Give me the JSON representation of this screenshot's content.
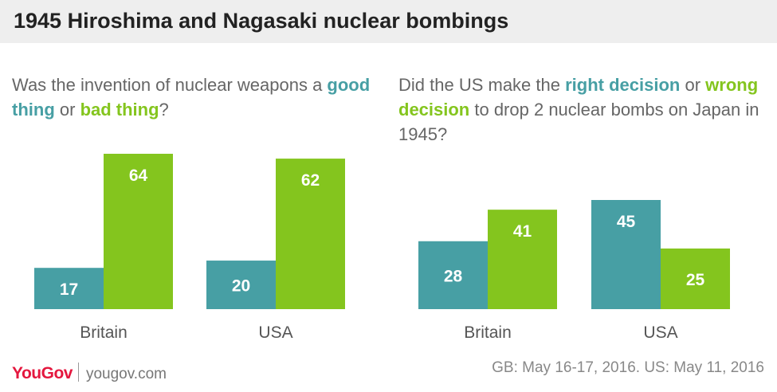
{
  "header": {
    "title": "1945 Hiroshima and Nagasaki nuclear bombings"
  },
  "colors": {
    "teal": "#479fa4",
    "green": "#84c51e",
    "brand": "#e4173e"
  },
  "chart_data": [
    {
      "type": "bar",
      "question": {
        "prefix": "Was the invention of nuclear weapons a ",
        "option1": "good thing",
        "middle": " or ",
        "option2": "bad thing",
        "suffix": "?"
      },
      "categories": [
        "Britain",
        "USA"
      ],
      "series": [
        {
          "name": "good thing",
          "color": "#479fa4",
          "values": [
            17,
            20
          ]
        },
        {
          "name": "bad thing",
          "color": "#84c51e",
          "values": [
            64,
            62
          ]
        }
      ],
      "ylim": [
        0,
        64
      ],
      "grid": false
    },
    {
      "type": "bar",
      "question": {
        "prefix": "Did the US make the ",
        "option1": "right decision",
        "middle": " or ",
        "option2": "wrong decision",
        "suffix": " to drop 2 nuclear bombs on Japan in 1945?"
      },
      "categories": [
        "Britain",
        "USA"
      ],
      "series": [
        {
          "name": "right decision",
          "color": "#479fa4",
          "values": [
            28,
            45
          ]
        },
        {
          "name": "wrong decision",
          "color": "#84c51e",
          "values": [
            41,
            25
          ]
        }
      ],
      "ylim": [
        0,
        45
      ],
      "grid": false
    }
  ],
  "footer": {
    "logo": "YouGov",
    "site": "yougov.com",
    "note": "GB: May 16-17, 2016. US: May 11, 2016"
  }
}
